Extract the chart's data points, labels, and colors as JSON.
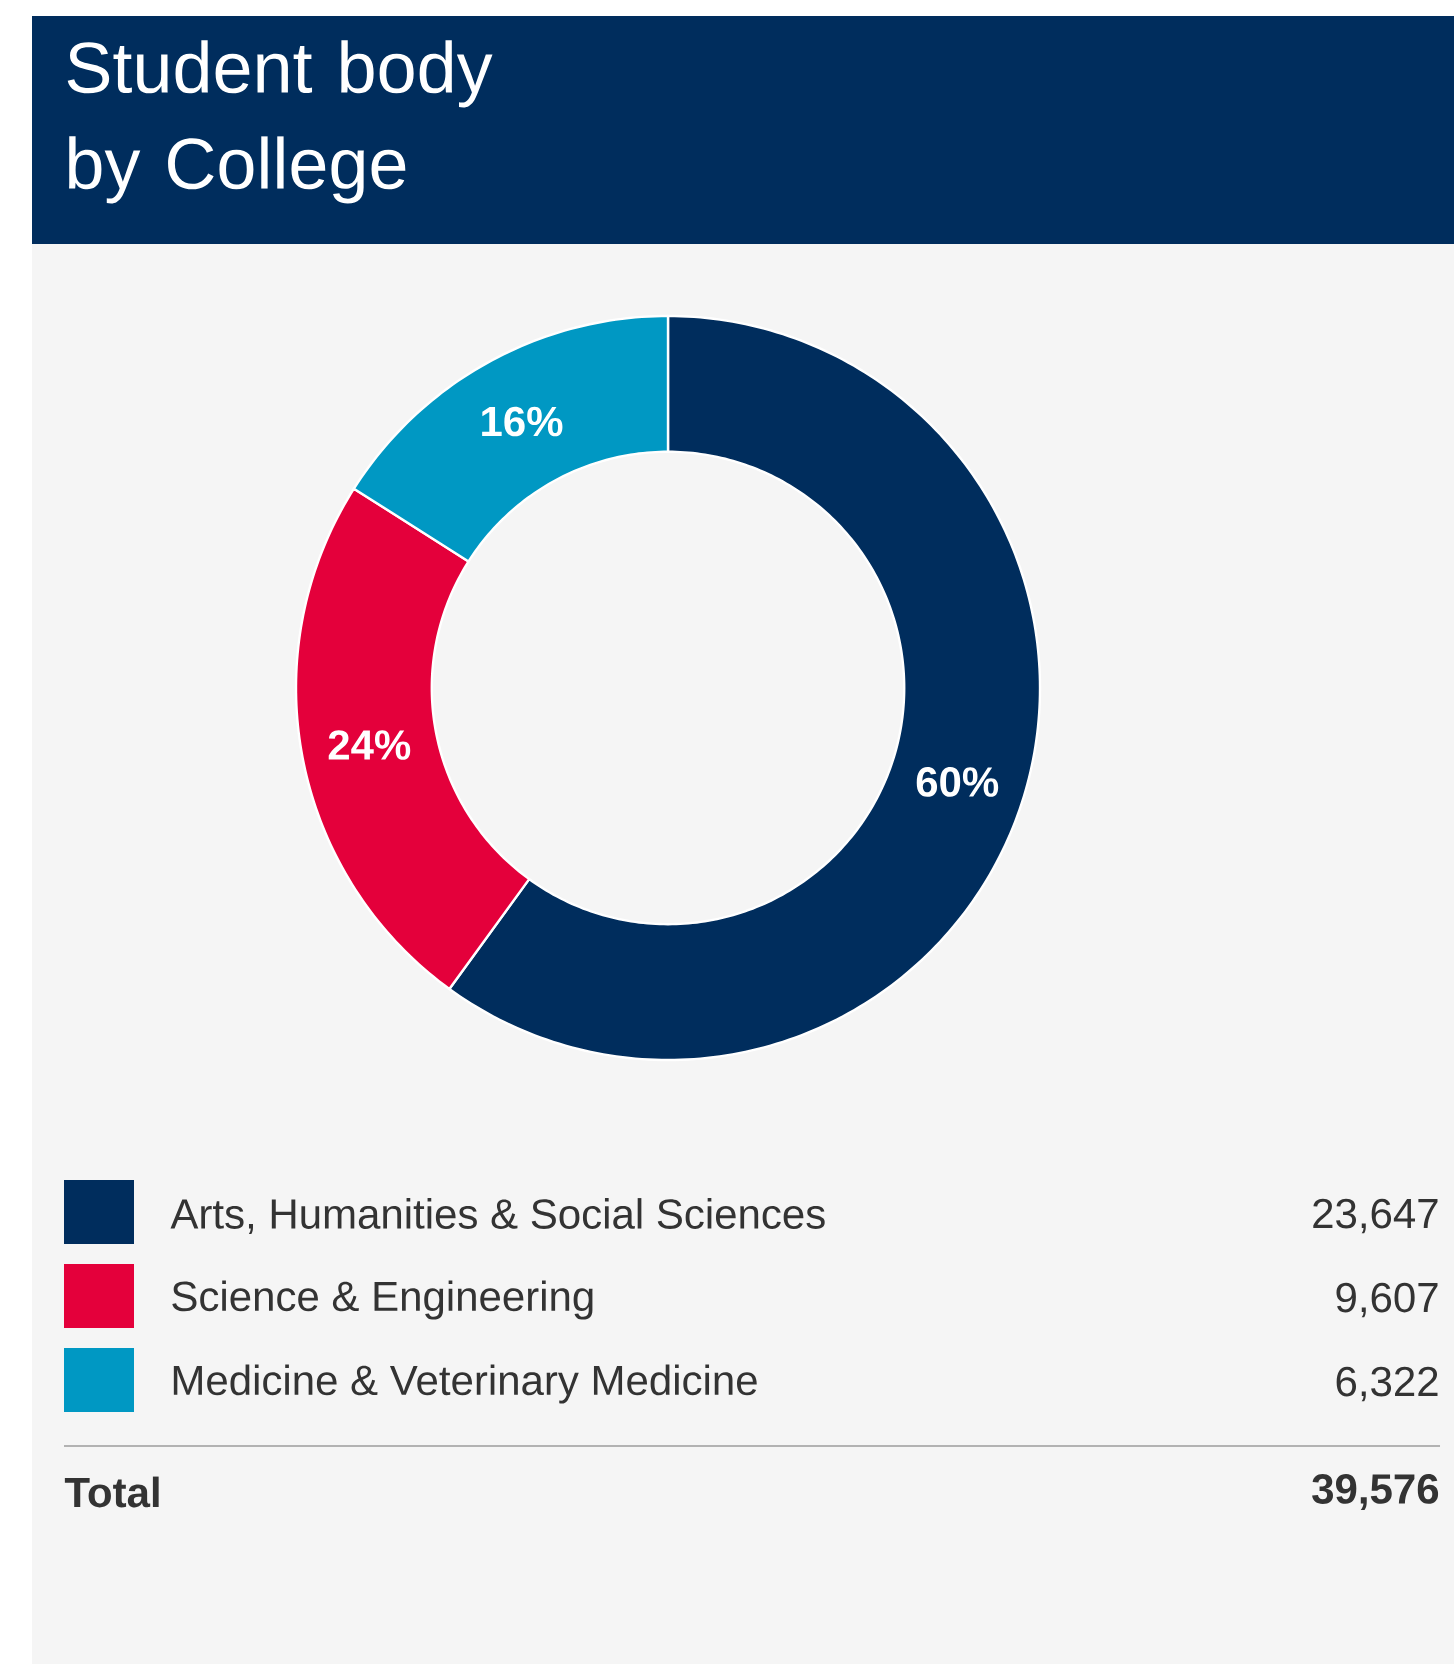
{
  "chart_data": {
    "type": "donut",
    "title": "Student body by College",
    "categories": [
      "Arts, Humanities & Social Sciences",
      "Science & Engineering",
      "Medicine & Veterinary Medicine"
    ],
    "values": [
      60,
      24,
      16
    ],
    "colors": [
      "#002d5d",
      "#e4003b",
      "#0098c3"
    ],
    "value_labels": [
      "60%",
      "24%",
      "16%"
    ],
    "annotations": [
      "23,647",
      "9,607",
      "6,322",
      "Total"
    ],
    "totals": [
      "39,576"
    ],
    "legend": "bottom"
  }
}
